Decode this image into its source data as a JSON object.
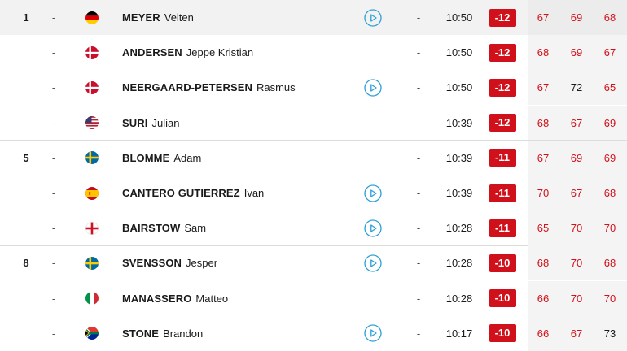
{
  "colors": {
    "score_badge": "#d0111b",
    "score_text": "#ffffff",
    "under_par_text": "#d0111b",
    "play_icon": "#2a9fd6"
  },
  "rows": [
    {
      "pos": "1",
      "move": "-",
      "flag": "germany-flag-icon",
      "last": "MEYER",
      "first": "Velten",
      "play": true,
      "thru": "-",
      "time": "10:50",
      "score": "-12",
      "r1": "67",
      "r2": "69",
      "r3": "68",
      "r1c": "red",
      "r2c": "red",
      "r3c": "red",
      "shaded": true,
      "sep_after": false
    },
    {
      "pos": "",
      "move": "-",
      "flag": "denmark-flag-icon",
      "last": "ANDERSEN",
      "first": "Jeppe Kristian",
      "play": false,
      "thru": "-",
      "time": "10:50",
      "score": "-12",
      "r1": "68",
      "r2": "69",
      "r3": "67",
      "r1c": "red",
      "r2c": "red",
      "r3c": "red",
      "shaded": false,
      "sep_after": false
    },
    {
      "pos": "",
      "move": "-",
      "flag": "denmark-flag-icon",
      "last": "NEERGAARD-PETERSEN",
      "first": "Rasmus",
      "play": true,
      "thru": "-",
      "time": "10:50",
      "score": "-12",
      "r1": "67",
      "r2": "72",
      "r3": "65",
      "r1c": "red",
      "r2c": "black",
      "r3c": "red",
      "shaded": false,
      "sep_after": false
    },
    {
      "pos": "",
      "move": "-",
      "flag": "usa-flag-icon",
      "last": "SURI",
      "first": "Julian",
      "play": false,
      "thru": "-",
      "time": "10:39",
      "score": "-12",
      "r1": "68",
      "r2": "67",
      "r3": "69",
      "r1c": "red",
      "r2c": "red",
      "r3c": "red",
      "shaded": false,
      "sep_after": true
    },
    {
      "pos": "5",
      "move": "-",
      "flag": "sweden-flag-icon",
      "last": "BLOMME",
      "first": "Adam",
      "play": false,
      "thru": "-",
      "time": "10:39",
      "score": "-11",
      "r1": "67",
      "r2": "69",
      "r3": "69",
      "r1c": "red",
      "r2c": "red",
      "r3c": "red",
      "shaded": false,
      "sep_after": false
    },
    {
      "pos": "",
      "move": "-",
      "flag": "spain-flag-icon",
      "last": "CANTERO GUTIERREZ",
      "first": "Ivan",
      "play": true,
      "thru": "-",
      "time": "10:39",
      "score": "-11",
      "r1": "70",
      "r2": "67",
      "r3": "68",
      "r1c": "red",
      "r2c": "red",
      "r3c": "red",
      "shaded": false,
      "sep_after": false
    },
    {
      "pos": "",
      "move": "-",
      "flag": "england-flag-icon",
      "last": "BAIRSTOW",
      "first": "Sam",
      "play": true,
      "thru": "-",
      "time": "10:28",
      "score": "-11",
      "r1": "65",
      "r2": "70",
      "r3": "70",
      "r1c": "red",
      "r2c": "red",
      "r3c": "red",
      "shaded": false,
      "sep_after": true
    },
    {
      "pos": "8",
      "move": "-",
      "flag": "sweden-flag-icon",
      "last": "SVENSSON",
      "first": "Jesper",
      "play": true,
      "thru": "-",
      "time": "10:28",
      "score": "-10",
      "r1": "68",
      "r2": "70",
      "r3": "68",
      "r1c": "red",
      "r2c": "red",
      "r3c": "red",
      "shaded": false,
      "sep_after": false
    },
    {
      "pos": "",
      "move": "-",
      "flag": "italy-flag-icon",
      "last": "MANASSERO",
      "first": "Matteo",
      "play": false,
      "thru": "-",
      "time": "10:28",
      "score": "-10",
      "r1": "66",
      "r2": "70",
      "r3": "70",
      "r1c": "red",
      "r2c": "red",
      "r3c": "red",
      "shaded": false,
      "sep_after": false
    },
    {
      "pos": "",
      "move": "-",
      "flag": "south-africa-flag-icon",
      "last": "STONE",
      "first": "Brandon",
      "play": true,
      "thru": "-",
      "time": "10:17",
      "score": "-10",
      "r1": "66",
      "r2": "67",
      "r3": "73",
      "r1c": "red",
      "r2c": "red",
      "r3c": "black",
      "shaded": false,
      "sep_after": false
    }
  ]
}
